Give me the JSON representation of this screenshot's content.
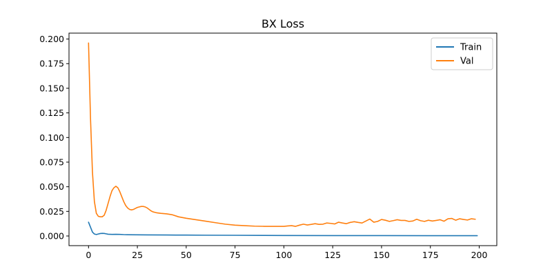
{
  "chart_data": {
    "type": "line",
    "title": "BX Loss",
    "xlabel": "",
    "ylabel": "",
    "xlim": [
      -10,
      209
    ],
    "ylim": [
      -0.0098,
      0.206
    ],
    "xticks": [
      0,
      25,
      50,
      75,
      100,
      125,
      150,
      175,
      200
    ],
    "xtick_labels": [
      "0",
      "25",
      "50",
      "75",
      "100",
      "125",
      "150",
      "175",
      "200"
    ],
    "yticks": [
      0.0,
      0.025,
      0.05,
      0.075,
      0.1,
      0.125,
      0.15,
      0.175,
      0.2
    ],
    "ytick_labels": [
      "0.000",
      "0.025",
      "0.050",
      "0.075",
      "0.100",
      "0.125",
      "0.150",
      "0.175",
      "0.200"
    ],
    "grid": false,
    "legend_position": "top-right",
    "series": [
      {
        "name": "Train",
        "color": "#1f77b4",
        "x": [
          0,
          1,
          2,
          3,
          4,
          5,
          6,
          7,
          8,
          9,
          10,
          12,
          14,
          16,
          18,
          20,
          25,
          30,
          40,
          50,
          60,
          75,
          90,
          100,
          125,
          150,
          175,
          199
        ],
        "y": [
          0.014,
          0.009,
          0.004,
          0.002,
          0.0015,
          0.002,
          0.0025,
          0.0027,
          0.0026,
          0.0022,
          0.0018,
          0.0016,
          0.0017,
          0.0016,
          0.0014,
          0.0013,
          0.0012,
          0.0011,
          0.001,
          0.0009,
          0.0008,
          0.0007,
          0.0006,
          0.0005,
          0.0004,
          0.0004,
          0.0003,
          0.0003
        ]
      },
      {
        "name": "Val",
        "color": "#ff7f0e",
        "x": [
          0,
          1,
          2,
          3,
          4,
          5,
          6,
          7,
          8,
          9,
          10,
          11,
          12,
          13,
          14,
          15,
          16,
          17,
          18,
          19,
          20,
          21,
          22,
          23,
          24,
          25,
          26,
          27,
          28,
          29,
          30,
          31,
          32,
          33,
          34,
          35,
          37,
          40,
          43,
          46,
          50,
          55,
          60,
          65,
          70,
          75,
          80,
          85,
          90,
          95,
          100,
          102,
          104,
          106,
          108,
          110,
          112,
          114,
          116,
          118,
          120,
          122,
          124,
          126,
          128,
          130,
          132,
          134,
          136,
          138,
          140,
          142,
          144,
          146,
          148,
          150,
          152,
          154,
          156,
          158,
          160,
          162,
          164,
          166,
          168,
          170,
          172,
          174,
          176,
          178,
          180,
          182,
          184,
          186,
          188,
          190,
          192,
          194,
          196,
          198
        ],
        "y": [
          0.196,
          0.12,
          0.065,
          0.035,
          0.023,
          0.02,
          0.0195,
          0.0195,
          0.021,
          0.026,
          0.033,
          0.04,
          0.046,
          0.049,
          0.0505,
          0.049,
          0.045,
          0.04,
          0.035,
          0.031,
          0.0285,
          0.027,
          0.0265,
          0.027,
          0.028,
          0.029,
          0.0295,
          0.03,
          0.03,
          0.0295,
          0.0285,
          0.027,
          0.0255,
          0.0245,
          0.024,
          0.0235,
          0.023,
          0.0225,
          0.0215,
          0.0195,
          0.018,
          0.0165,
          0.015,
          0.0135,
          0.012,
          0.011,
          0.0105,
          0.01,
          0.0098,
          0.0098,
          0.0098,
          0.0102,
          0.0105,
          0.0098,
          0.011,
          0.012,
          0.0112,
          0.0118,
          0.0125,
          0.0118,
          0.012,
          0.0132,
          0.0128,
          0.0122,
          0.014,
          0.0132,
          0.0125,
          0.0138,
          0.0145,
          0.0138,
          0.0132,
          0.0152,
          0.0172,
          0.014,
          0.0148,
          0.0168,
          0.016,
          0.0148,
          0.0156,
          0.0165,
          0.0158,
          0.0158,
          0.0148,
          0.0152,
          0.017,
          0.0155,
          0.0148,
          0.016,
          0.0152,
          0.0158,
          0.0165,
          0.015,
          0.0175,
          0.0178,
          0.016,
          0.0175,
          0.0168,
          0.0162,
          0.0175,
          0.017
        ]
      }
    ]
  }
}
